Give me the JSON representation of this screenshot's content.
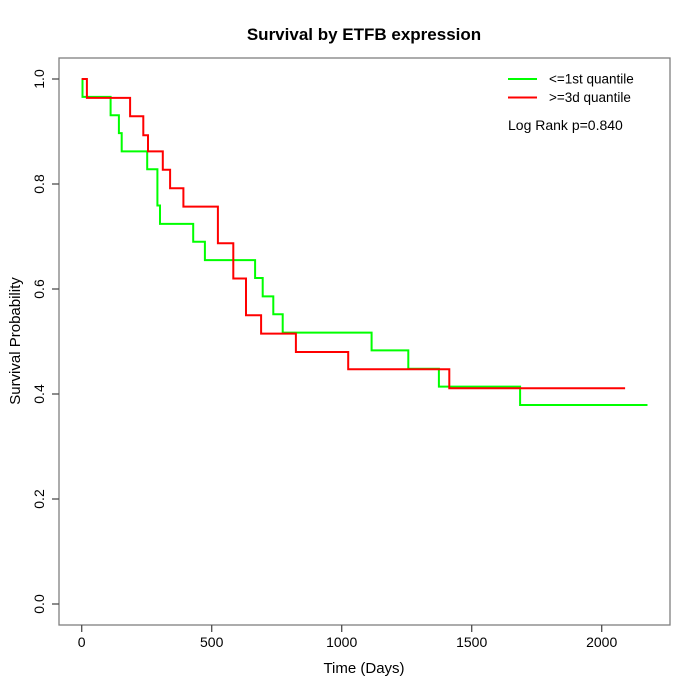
{
  "title": "Survival by ETFB expression",
  "axes": {
    "x": {
      "label": "Time (Days)",
      "ticks": [
        {
          "v": 0,
          "label": "0"
        },
        {
          "v": 500,
          "label": "500"
        },
        {
          "v": 1000,
          "label": "1000"
        },
        {
          "v": 1500,
          "label": "1500"
        },
        {
          "v": 2000,
          "label": "2000"
        }
      ]
    },
    "y": {
      "label": "Survival Probability",
      "ticks": [
        {
          "v": 0.0,
          "label": "0.0"
        },
        {
          "v": 0.2,
          "label": "0.2"
        },
        {
          "v": 0.4,
          "label": "0.4"
        },
        {
          "v": 0.6,
          "label": "0.6"
        },
        {
          "v": 0.8,
          "label": "0.8"
        },
        {
          "v": 1.0,
          "label": "1.0"
        }
      ]
    }
  },
  "legend": {
    "items": [
      {
        "label": "<=1st quantile",
        "color": "#00ff00"
      },
      {
        "label": ">=3d quantile",
        "color": "#ff0000"
      }
    ],
    "pvalue_text": "Log Rank p=0.840"
  },
  "chart_data": {
    "type": "line",
    "subtype": "kaplan-meier-step",
    "title": "Survival by ETFB expression",
    "xlabel": "Time (Days)",
    "ylabel": "Survival Probability",
    "xlim": [
      0,
      2260
    ],
    "ylim": [
      0.0,
      1.0
    ],
    "grid": false,
    "legend_position": "top-right",
    "annotation": "Log Rank p=0.840",
    "series": [
      {
        "name": "<=1st quantile",
        "color": "#00ff00",
        "end_time": 2176,
        "points": [
          [
            0,
            1.0
          ],
          [
            3,
            0.966
          ],
          [
            111,
            0.931
          ],
          [
            143,
            0.897
          ],
          [
            154,
            0.862
          ],
          [
            252,
            0.828
          ],
          [
            291,
            0.759
          ],
          [
            301,
            0.724
          ],
          [
            429,
            0.69
          ],
          [
            474,
            0.655
          ],
          [
            667,
            0.621
          ],
          [
            696,
            0.586
          ],
          [
            737,
            0.552
          ],
          [
            773,
            0.517
          ],
          [
            1115,
            0.483
          ],
          [
            1256,
            0.448
          ],
          [
            1374,
            0.414
          ],
          [
            1686,
            0.379
          ]
        ]
      },
      {
        "name": ">=3d quantile",
        "color": "#ff0000",
        "end_time": 2090,
        "points": [
          [
            0,
            1.0
          ],
          [
            20,
            0.964
          ],
          [
            186,
            0.929
          ],
          [
            237,
            0.893
          ],
          [
            255,
            0.862
          ],
          [
            312,
            0.827
          ],
          [
            340,
            0.792
          ],
          [
            391,
            0.757
          ],
          [
            524,
            0.687
          ],
          [
            583,
            0.62
          ],
          [
            632,
            0.55
          ],
          [
            690,
            0.515
          ],
          [
            824,
            0.48
          ],
          [
            1025,
            0.447
          ],
          [
            1414,
            0.411
          ]
        ]
      }
    ]
  }
}
